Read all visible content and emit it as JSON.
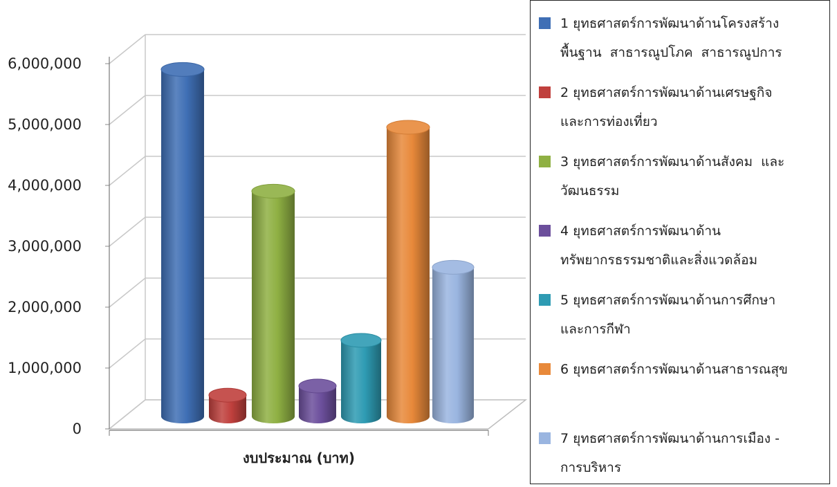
{
  "chart_data": {
    "type": "bar",
    "categories": [
      "งบประมาณ (บาท)"
    ],
    "xlabel": "งบประมาณ (บาท)",
    "ylim": [
      0,
      6000000
    ],
    "ytick_labels": [
      "0",
      "1,000,000",
      "2,000,000",
      "3,000,000",
      "4,000,000",
      "5,000,000",
      "6,000,000"
    ],
    "ytick_values": [
      0,
      1000000,
      2000000,
      3000000,
      4000000,
      5000000,
      6000000
    ],
    "grid": true,
    "legend_position": "right",
    "series": [
      {
        "name": "1 ยุทธศาสตร์การพัฒนาด้านโครงสร้างพื้นฐาน สาธารณูปโภค สาธารณูปการ",
        "values": [
          5700000
        ],
        "color": "#3f6fb5"
      },
      {
        "name": "2 ยุทธศาสตร์การพัฒนาด้านเศรษฐกิจและการท่องเที่ยว",
        "values": [
          350000
        ],
        "color": "#c0403d"
      },
      {
        "name": "3 ยุทธศาสตร์การพัฒนาด้านสังคม และวัฒนธรรม",
        "values": [
          3700000
        ],
        "color": "#8fb043"
      },
      {
        "name": "4 ยุทธศาสตร์การพัฒนาด้านทรัพยากรธรรมชาติและสิ่งแวดล้อม",
        "values": [
          500000
        ],
        "color": "#6c4f9c"
      },
      {
        "name": "5 ยุทธศาสตร์การพัฒนาด้านการศึกษาและการกีฬา",
        "values": [
          1250000
        ],
        "color": "#2e9bb3"
      },
      {
        "name": "6 ยุทธศาสตร์การพัฒนาด้านสาธารณสุข",
        "values": [
          4750000
        ],
        "color": "#e8893a"
      },
      {
        "name": "7 ยุทธศาสตร์การพัฒนาด้านการเมือง -การบริหาร",
        "values": [
          2450000
        ],
        "color": "#9ab5e0"
      }
    ]
  },
  "legend": {
    "items": [
      {
        "label": "1 ยุทธศาสตร์การพัฒนาด้านโครงสร้าง\nพื้นฐาน  สาธารณูปโภค  สาธารณูปการ"
      },
      {
        "label": "2 ยุทธศาสตร์การพัฒนาด้านเศรษฐกิจ\nและการท่องเที่ยว"
      },
      {
        "label": "3 ยุทธศาสตร์การพัฒนาด้านสังคม  และ\nวัฒนธรรม"
      },
      {
        "label": "4 ยุทธศาสตร์การพัฒนาด้าน\nทรัพยากรธรรมชาติและสิ่งแวดล้อม"
      },
      {
        "label": "5 ยุทธศาสตร์การพัฒนาด้านการศึกษา\nและการกีฬา"
      },
      {
        "label": "6 ยุทธศาสตร์การพัฒนาด้านสาธารณสุข"
      },
      {
        "label": "7 ยุทธศาสตร์การพัฒนาด้านการเมือง -\nการบริหาร"
      }
    ]
  }
}
